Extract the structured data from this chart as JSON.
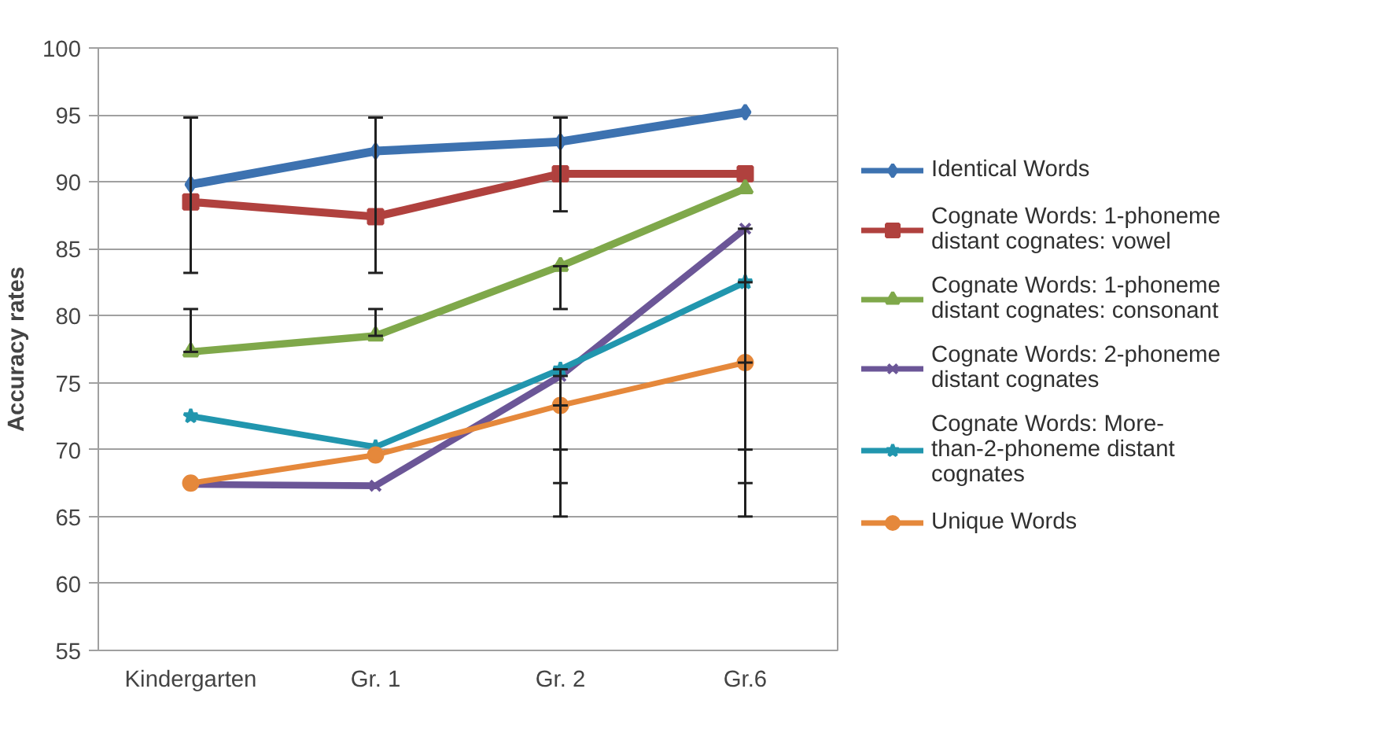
{
  "chart_data": {
    "type": "line",
    "ylabel": "Accuracy rates",
    "categories": [
      "Kindergarten",
      "Gr. 1",
      "Gr. 2",
      "Gr.6"
    ],
    "ylim": [
      55,
      100
    ],
    "yticks": [
      55,
      60,
      65,
      70,
      75,
      80,
      85,
      90,
      95,
      100
    ],
    "grid": "y",
    "legend": "right",
    "series": [
      {
        "name": "Identical Words",
        "color": "#3d72b0",
        "marker": "diamond",
        "values": [
          89.8,
          92.3,
          93,
          95.2
        ],
        "errors": [
          [
            83.2,
            94.8
          ],
          [
            83.2,
            94.8
          ],
          [
            87.8,
            94.8
          ],
          null
        ]
      },
      {
        "name": "Cognate Words: 1-phoneme distant cognates: vowel",
        "color": "#b0413e",
        "marker": "square",
        "values": [
          88.5,
          87.4,
          90.6,
          90.6
        ]
      },
      {
        "name": "Cognate Words: 1-phoneme distant cognates: consonant",
        "color": "#7fa84a",
        "marker": "triangle",
        "values": [
          77.3,
          78.5,
          83.7,
          89.5
        ],
        "errors": [
          [
            77.3,
            80.5
          ],
          [
            78.5,
            80.5
          ],
          [
            80.5,
            83.7
          ],
          null
        ]
      },
      {
        "name": "Cognate Words: 2-phoneme distant cognates",
        "color": "#6b5697",
        "marker": "cross",
        "values": [
          67.4,
          67.3,
          75.5,
          86.5
        ],
        "errors": [
          null,
          null,
          [
            67.5,
            75.5
          ],
          [
            67.5,
            86.5
          ]
        ]
      },
      {
        "name": "Cognate Words: More-than-2-phoneme distant cognates",
        "color": "#2196ae",
        "marker": "star",
        "values": [
          72.5,
          70.2,
          76,
          82.5
        ],
        "errors": [
          null,
          null,
          [
            70,
            76
          ],
          [
            70,
            82.5
          ]
        ]
      },
      {
        "name": "Unique Words",
        "color": "#e5883b",
        "marker": "circle",
        "values": [
          67.5,
          69.6,
          73.3,
          76.5
        ],
        "errors": [
          null,
          null,
          [
            65,
            73.3
          ],
          [
            65,
            76.5
          ]
        ]
      }
    ]
  }
}
